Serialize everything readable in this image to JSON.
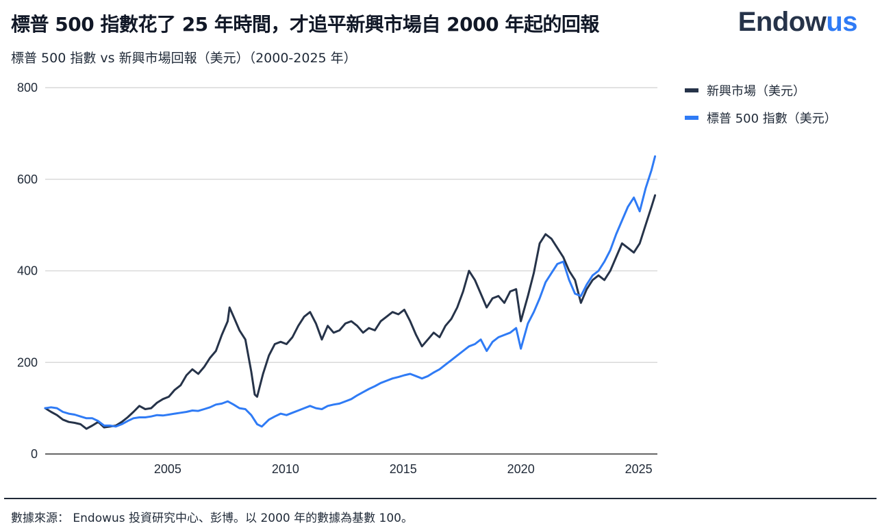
{
  "header": {
    "title": "標普 500 指數花了 25 年時間，才追平新興市場自 2000 年起的回報",
    "subtitle": "標普 500 指數 vs 新興市場回報（美元）（2000-2025 年）"
  },
  "logo": {
    "text_main": "Endow",
    "text_accent": "us"
  },
  "colors": {
    "em": "#263349",
    "sp500": "#2f7bf5",
    "grid": "#d9d9d9",
    "axis": "#333333"
  },
  "chart_data": {
    "type": "line",
    "title": "標普 500 指數花了 25 年時間，才追平新興市場自 2000 年起的回報",
    "subtitle": "標普 500 指數 vs 新興市場回報（美元）（2000-2025 年）",
    "xlabel": "",
    "ylabel": "",
    "xlim": [
      2000,
      2026
    ],
    "ylim": [
      0,
      800
    ],
    "yticks": [
      0,
      200,
      400,
      600,
      800
    ],
    "ytick_labels": [
      "0",
      "200",
      "400",
      "600",
      "800"
    ],
    "xticks": [
      2005,
      2010,
      2015,
      2020,
      2025
    ],
    "xtick_labels": [
      "2005",
      "2010",
      "2015",
      "2020",
      "2025"
    ],
    "grid": "horizontal",
    "legend_position": "right-top",
    "series": [
      {
        "name": "新興市場（美元）",
        "color": "#263349",
        "x": [
          2000.0,
          2000.25,
          2000.5,
          2000.75,
          2001.0,
          2001.25,
          2001.5,
          2001.75,
          2002.0,
          2002.25,
          2002.5,
          2002.75,
          2003.0,
          2003.25,
          2003.5,
          2003.75,
          2004.0,
          2004.25,
          2004.5,
          2004.75,
          2005.0,
          2005.25,
          2005.5,
          2005.75,
          2006.0,
          2006.25,
          2006.5,
          2006.75,
          2007.0,
          2007.25,
          2007.5,
          2007.75,
          2007.83,
          2008.0,
          2008.25,
          2008.5,
          2008.75,
          2008.9,
          2009.0,
          2009.25,
          2009.5,
          2009.75,
          2010.0,
          2010.25,
          2010.5,
          2010.75,
          2011.0,
          2011.25,
          2011.5,
          2011.75,
          2012.0,
          2012.25,
          2012.5,
          2012.75,
          2013.0,
          2013.25,
          2013.5,
          2013.75,
          2014.0,
          2014.25,
          2014.5,
          2014.75,
          2015.0,
          2015.25,
          2015.5,
          2015.75,
          2016.0,
          2016.25,
          2016.5,
          2016.75,
          2017.0,
          2017.25,
          2017.5,
          2017.75,
          2018.0,
          2018.25,
          2018.5,
          2018.75,
          2019.0,
          2019.25,
          2019.5,
          2019.75,
          2020.0,
          2020.2,
          2020.5,
          2020.75,
          2021.0,
          2021.25,
          2021.5,
          2021.75,
          2022.0,
          2022.25,
          2022.5,
          2022.75,
          2023.0,
          2023.25,
          2023.5,
          2023.75,
          2024.0,
          2024.25,
          2024.5,
          2024.75,
          2025.0,
          2025.25,
          2025.5,
          2025.75,
          2025.9
        ],
        "values": [
          100,
          92,
          85,
          75,
          70,
          68,
          65,
          55,
          62,
          70,
          58,
          60,
          62,
          70,
          80,
          92,
          105,
          98,
          100,
          112,
          120,
          125,
          140,
          150,
          172,
          185,
          175,
          190,
          210,
          225,
          260,
          290,
          320,
          300,
          270,
          250,
          180,
          130,
          125,
          175,
          215,
          240,
          245,
          240,
          255,
          280,
          300,
          310,
          285,
          250,
          280,
          265,
          270,
          285,
          290,
          280,
          265,
          275,
          270,
          290,
          300,
          310,
          305,
          315,
          290,
          260,
          235,
          250,
          265,
          255,
          280,
          295,
          320,
          355,
          400,
          380,
          350,
          320,
          340,
          345,
          330,
          355,
          360,
          290,
          345,
          395,
          460,
          480,
          470,
          450,
          430,
          400,
          380,
          330,
          360,
          380,
          390,
          380,
          400,
          430,
          460,
          450,
          440,
          460,
          500,
          540,
          565
        ]
      },
      {
        "name": "標普 500 指數（美元）",
        "color": "#2f7bf5",
        "x": [
          2000.0,
          2000.25,
          2000.5,
          2000.75,
          2001.0,
          2001.25,
          2001.5,
          2001.75,
          2002.0,
          2002.25,
          2002.5,
          2002.75,
          2003.0,
          2003.25,
          2003.5,
          2003.75,
          2004.0,
          2004.25,
          2004.5,
          2004.75,
          2005.0,
          2005.25,
          2005.5,
          2005.75,
          2006.0,
          2006.25,
          2006.5,
          2006.75,
          2007.0,
          2007.25,
          2007.5,
          2007.75,
          2008.0,
          2008.25,
          2008.5,
          2008.75,
          2009.0,
          2009.2,
          2009.5,
          2009.75,
          2010.0,
          2010.25,
          2010.5,
          2010.75,
          2011.0,
          2011.25,
          2011.5,
          2011.75,
          2012.0,
          2012.25,
          2012.5,
          2012.75,
          2013.0,
          2013.25,
          2013.5,
          2013.75,
          2014.0,
          2014.25,
          2014.5,
          2014.75,
          2015.0,
          2015.25,
          2015.5,
          2015.75,
          2016.0,
          2016.25,
          2016.5,
          2016.75,
          2017.0,
          2017.25,
          2017.5,
          2017.75,
          2018.0,
          2018.25,
          2018.5,
          2018.75,
          2019.0,
          2019.25,
          2019.5,
          2019.75,
          2020.0,
          2020.2,
          2020.5,
          2020.75,
          2021.0,
          2021.25,
          2021.5,
          2021.75,
          2022.0,
          2022.25,
          2022.5,
          2022.75,
          2023.0,
          2023.25,
          2023.5,
          2023.75,
          2024.0,
          2024.25,
          2024.5,
          2024.75,
          2025.0,
          2025.25,
          2025.5,
          2025.75,
          2025.9
        ],
        "values": [
          100,
          102,
          100,
          92,
          88,
          86,
          82,
          78,
          78,
          72,
          62,
          62,
          60,
          65,
          72,
          78,
          80,
          80,
          82,
          85,
          84,
          86,
          88,
          90,
          92,
          95,
          94,
          98,
          102,
          108,
          110,
          115,
          108,
          100,
          98,
          85,
          65,
          60,
          75,
          82,
          88,
          85,
          90,
          95,
          100,
          105,
          100,
          98,
          105,
          108,
          110,
          115,
          120,
          128,
          135,
          142,
          148,
          155,
          160,
          165,
          168,
          172,
          175,
          170,
          165,
          170,
          178,
          185,
          195,
          205,
          215,
          225,
          235,
          240,
          250,
          225,
          245,
          255,
          260,
          265,
          275,
          230,
          285,
          310,
          340,
          375,
          395,
          415,
          420,
          380,
          350,
          345,
          370,
          390,
          400,
          420,
          445,
          480,
          510,
          540,
          560,
          530,
          580,
          620,
          650
        ]
      }
    ]
  },
  "legend": {
    "items": [
      {
        "label": "新興市場（美元）"
      },
      {
        "label": "標普 500 指數（美元）"
      }
    ]
  },
  "footer": {
    "source": "數據來源： Endowus 投資研究中心、彭博。以 2000 年的數據為基數 100。"
  }
}
